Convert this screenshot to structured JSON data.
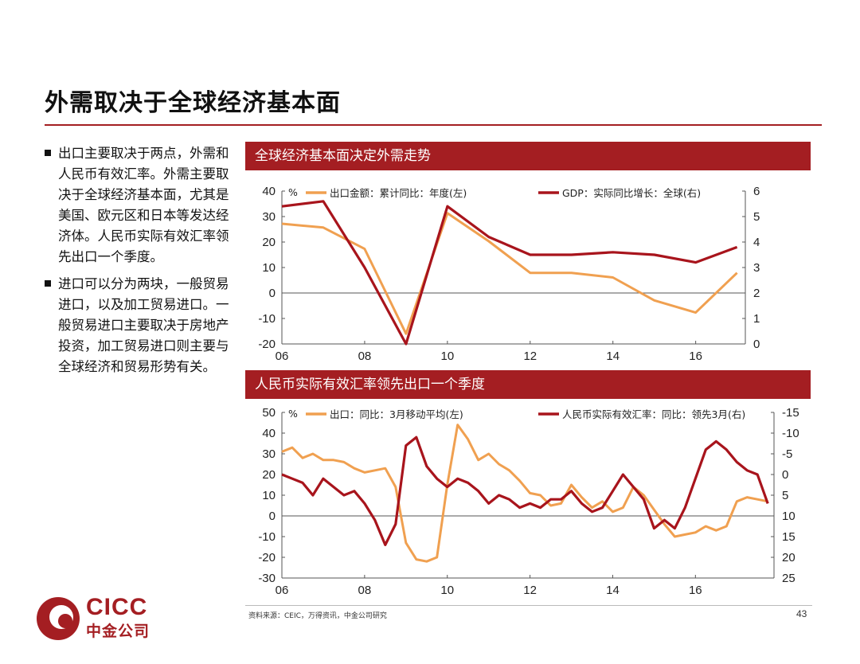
{
  "slide": {
    "title": "外需取决于全球经济基本面",
    "bullets": [
      "出口主要取决于两点，外需和人民币有效汇率。外需主要取决于全球经济基本面，尤其是美国、欧元区和日本等发达经济体。人民币实际有效汇率领先出口一个季度。",
      "进口可以分为两块，一般贸易进口，以及加工贸易进口。一般贸易进口主要取决于房地产投资，加工贸易进口则主要与全球经济和贸易形势有关。"
    ],
    "source": "资料来源：CEIC，万得资讯，中金公司研究",
    "page_number": "43",
    "logo": {
      "en": "CICC",
      "cn": "中金公司"
    }
  },
  "colors": {
    "orange": "#f0a050",
    "red": "#a8141c",
    "bar": "#a41e22"
  },
  "chart_data": [
    {
      "type": "line",
      "title": "全球经济基本面决定外需走势",
      "unit_label": "%",
      "x_ticks": [
        "06",
        "08",
        "10",
        "12",
        "14",
        "16"
      ],
      "x_tick_values": [
        2006,
        2008,
        2010,
        2012,
        2014,
        2016
      ],
      "xlim": [
        2006,
        2017.2
      ],
      "ylim_left": [
        -20,
        40
      ],
      "left_ticks": [
        "40",
        "30",
        "20",
        "10",
        "0",
        "-10",
        "-20"
      ],
      "ylim_right": [
        0,
        6
      ],
      "right_ticks": [
        "6",
        "5",
        "4",
        "3",
        "2",
        "1",
        "0"
      ],
      "series": [
        {
          "name": "出口金额：累计同比：年度(左)",
          "axis": "left",
          "color": "#f0a050",
          "x": [
            2006,
            2007,
            2008,
            2009,
            2010,
            2011,
            2012,
            2013,
            2014,
            2015,
            2016,
            2017
          ],
          "values": [
            27.2,
            25.7,
            17.3,
            -16.0,
            31.3,
            20.3,
            7.9,
            7.9,
            6.1,
            -2.9,
            -7.7,
            7.9
          ]
        },
        {
          "name": "GDP：实际同比增长：全球(右)",
          "axis": "right",
          "color": "#a8141c",
          "x": [
            2006,
            2007,
            2008,
            2009,
            2010,
            2011,
            2012,
            2013,
            2014,
            2015,
            2016,
            2017
          ],
          "values": [
            5.4,
            5.6,
            3.0,
            0.0,
            5.4,
            4.2,
            3.5,
            3.5,
            3.6,
            3.5,
            3.2,
            3.8
          ]
        }
      ]
    },
    {
      "type": "line",
      "title": "人民币实际有效汇率领先出口一个季度",
      "unit_label": "%",
      "x_ticks": [
        "06",
        "08",
        "10",
        "12",
        "14",
        "16"
      ],
      "x_tick_values": [
        2006,
        2008,
        2010,
        2012,
        2014,
        2016
      ],
      "xlim": [
        2006,
        2017.9
      ],
      "ylim_left": [
        -30,
        50
      ],
      "left_ticks": [
        "50",
        "40",
        "30",
        "20",
        "10",
        "0",
        "-10",
        "-20",
        "-30"
      ],
      "ylim_right": [
        -15,
        25
      ],
      "right_inverted": true,
      "right_ticks": [
        "-15",
        "-10",
        "-5",
        "0",
        "5",
        "10",
        "15",
        "20",
        "25"
      ],
      "series": [
        {
          "name": "出口：同比：3月移动平均(左)",
          "axis": "left",
          "color": "#f0a050",
          "x": [
            2006.0,
            2006.25,
            2006.5,
            2006.75,
            2007.0,
            2007.25,
            2007.5,
            2007.75,
            2008.0,
            2008.25,
            2008.5,
            2008.75,
            2009.0,
            2009.25,
            2009.5,
            2009.75,
            2010.0,
            2010.25,
            2010.5,
            2010.75,
            2011.0,
            2011.25,
            2011.5,
            2011.75,
            2012.0,
            2012.25,
            2012.5,
            2012.75,
            2013.0,
            2013.25,
            2013.5,
            2013.75,
            2014.0,
            2014.25,
            2014.5,
            2014.75,
            2015.0,
            2015.25,
            2015.5,
            2015.75,
            2016.0,
            2016.25,
            2016.5,
            2016.75,
            2017.0,
            2017.25,
            2017.5,
            2017.75
          ],
          "values": [
            31,
            33,
            28,
            30,
            27,
            27,
            26,
            23,
            21,
            22,
            23,
            14,
            -13,
            -21,
            -22,
            -20,
            15,
            44,
            37,
            27,
            30,
            25,
            22,
            17,
            11,
            10,
            5,
            6,
            15,
            9,
            4,
            7,
            2,
            4,
            14,
            10,
            3,
            -4,
            -10,
            -9,
            -8,
            -5,
            -7,
            -5,
            7,
            9,
            8,
            7
          ]
        },
        {
          "name": "人民币实际有效汇率：同比：领先3月(右)",
          "axis": "right",
          "color": "#a8141c",
          "x": [
            2006.0,
            2006.25,
            2006.5,
            2006.75,
            2007.0,
            2007.25,
            2007.5,
            2007.75,
            2008.0,
            2008.25,
            2008.5,
            2008.75,
            2009.0,
            2009.25,
            2009.5,
            2009.75,
            2010.0,
            2010.25,
            2010.5,
            2010.75,
            2011.0,
            2011.25,
            2011.5,
            2011.75,
            2012.0,
            2012.25,
            2012.5,
            2012.75,
            2013.0,
            2013.25,
            2013.5,
            2013.75,
            2014.0,
            2014.25,
            2014.5,
            2014.75,
            2015.0,
            2015.25,
            2015.5,
            2015.75,
            2016.0,
            2016.25,
            2016.5,
            2016.75,
            2017.0,
            2017.25,
            2017.5,
            2017.75
          ],
          "values": [
            0,
            1,
            2,
            5,
            1,
            3,
            5,
            4,
            7,
            11,
            17,
            12,
            -7,
            -9,
            -2,
            1,
            3,
            1,
            2,
            4,
            7,
            5,
            6,
            8,
            7,
            8,
            6,
            6,
            4,
            7,
            9,
            8,
            4,
            0,
            3,
            6,
            13,
            11,
            13,
            8,
            1,
            -6,
            -8,
            -6,
            -3,
            -1,
            0,
            7
          ]
        }
      ]
    }
  ]
}
